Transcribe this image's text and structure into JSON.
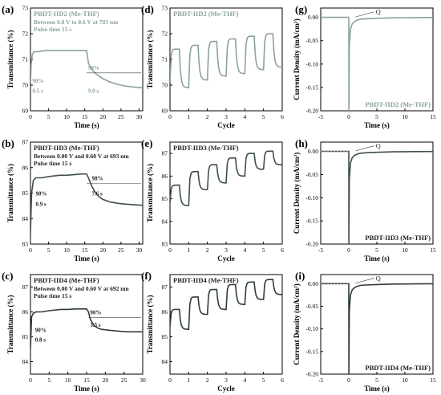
{
  "colors": {
    "c1": "#8aa39a",
    "c2": "#3e4f48",
    "c3": "#2f3d36",
    "axis": "#000000",
    "dash": "#999999"
  },
  "chart_data": [
    {
      "id": "a",
      "panel_label": "(a)",
      "type": "line",
      "color": "#8aa39a",
      "title": "PBDT-IID2 (Me-THF)",
      "info_lines": [
        "Between 0.0 V to 0.6 V at 703 nm",
        "Pulse time 15 s"
      ],
      "xlabel": "Time (s)",
      "ylabel": "Transmittance (%)",
      "xlim": [
        0,
        31
      ],
      "ylim": [
        69,
        73
      ],
      "xticks": [
        "0",
        "5",
        "10",
        "15",
        "20",
        "25",
        "30"
      ],
      "yticks": [
        "69",
        "70",
        "71",
        "72",
        "73"
      ],
      "annotations": [
        {
          "text": "90%",
          "x": 0.1,
          "y": 70.1
        },
        {
          "text": "0.5 s",
          "x": 0.1,
          "y": 69.7
        },
        {
          "text": "90%",
          "x": 15.5,
          "y": 70.6
        },
        {
          "text": "9.0 s",
          "x": 15.5,
          "y": 69.7
        }
      ],
      "series": [
        {
          "x": [
            0,
            0.2,
            0.5,
            1,
            2,
            4,
            6,
            8,
            10,
            12,
            14,
            15.5,
            16,
            17,
            18,
            19,
            20,
            22,
            24,
            26,
            28,
            30,
            31
          ],
          "y": [
            70.1,
            70.8,
            71.2,
            71.3,
            71.3,
            71.35,
            71.35,
            71.35,
            71.35,
            71.35,
            71.35,
            71.35,
            70.85,
            70.6,
            70.45,
            70.35,
            70.25,
            70.12,
            70.03,
            69.97,
            69.93,
            69.9,
            69.9
          ]
        }
      ]
    },
    {
      "id": "b",
      "panel_label": "(b)",
      "type": "line",
      "color": "#3e4f48",
      "title": "PBDT-IID3 (Me-THF)",
      "info_lines": [
        "Between 0.00 V and 0.60 V at 693 nm",
        "Pulse time 15 s"
      ],
      "xlabel": "Time (s)",
      "ylabel": "Transmittance (%)",
      "xlim": [
        0,
        31
      ],
      "ylim": [
        83,
        87
      ],
      "xticks": [
        "0",
        "5",
        "10",
        "15",
        "20",
        "25",
        "30"
      ],
      "yticks": [
        "83",
        "84",
        "85",
        "86",
        "87"
      ],
      "annotations": [
        {
          "text": "90%",
          "x": 1,
          "y": 84.9
        },
        {
          "text": "0.9 s",
          "x": 1,
          "y": 84.5
        },
        {
          "text": "98%",
          "x": 16.5,
          "y": 85.5
        },
        {
          "text": "7.6 s",
          "x": 16.5,
          "y": 84.9
        }
      ],
      "series": [
        {
          "x": [
            0,
            0.3,
            0.8,
            1.5,
            3,
            5,
            8,
            10,
            12,
            14,
            15.5,
            16,
            17,
            18,
            19,
            20,
            22,
            24,
            26,
            28,
            30,
            31
          ],
          "y": [
            83.4,
            85.0,
            85.5,
            85.6,
            85.6,
            85.65,
            85.7,
            85.7,
            85.72,
            85.75,
            85.75,
            85.6,
            85.25,
            85.0,
            84.85,
            84.75,
            84.65,
            84.6,
            84.57,
            84.55,
            84.53,
            84.52
          ]
        }
      ]
    },
    {
      "id": "c",
      "panel_label": "(c)",
      "type": "line",
      "color": "#2f3d36",
      "title": "PBDT-IID4 (Me-THF)",
      "info_lines": [
        "Between 0.00 V and 0.60 V at 692 nm",
        "Pulse time 15 s"
      ],
      "xlabel": "Time (s)",
      "ylabel": "Transmittance (%)",
      "xlim": [
        0,
        30
      ],
      "ylim": [
        83.5,
        87.5
      ],
      "xticks": [
        "0",
        "5",
        "10",
        "15",
        "20",
        "25",
        "30"
      ],
      "yticks": [
        "84",
        "85",
        "86",
        "87"
      ],
      "annotations": [
        {
          "text": "90%",
          "x": 0.8,
          "y": 85.2
        },
        {
          "text": "0.8 s",
          "x": 0.8,
          "y": 84.8
        },
        {
          "text": "90%",
          "x": 15.5,
          "y": 85.9
        },
        {
          "text": "3.5 s",
          "x": 15.5,
          "y": 85.4
        }
      ],
      "series": [
        {
          "x": [
            0,
            0.3,
            0.8,
            1.5,
            3,
            5,
            8,
            10,
            12,
            14,
            15,
            15.5,
            16,
            17,
            18,
            19,
            20,
            22,
            24,
            26,
            28,
            30
          ],
          "y": [
            84.5,
            85.8,
            85.95,
            86.0,
            86.0,
            86.05,
            86.1,
            86.1,
            86.12,
            86.12,
            86.12,
            86.0,
            85.7,
            85.45,
            85.35,
            85.3,
            85.28,
            85.25,
            85.22,
            85.2,
            85.2,
            85.2
          ]
        }
      ]
    },
    {
      "id": "d",
      "panel_label": "(d)",
      "type": "line",
      "color": "#8aa39a",
      "title": "PBDT-IID2 (Me-THF)",
      "xlabel": "Cycle",
      "ylabel": "Transmittance (%)",
      "xlim": [
        0,
        6
      ],
      "ylim": [
        69,
        73
      ],
      "xticks": [
        "0",
        "1",
        "2",
        "3",
        "4",
        "5",
        "6"
      ],
      "yticks": [
        "69",
        "70",
        "71",
        "72",
        "73"
      ],
      "series": [
        {
          "cycles": 6,
          "high": [
            71.4,
            71.55,
            71.7,
            71.8,
            71.9,
            72.0
          ],
          "low": [
            69.9,
            70.2,
            70.35,
            70.45,
            70.6,
            70.7
          ]
        }
      ]
    },
    {
      "id": "e",
      "panel_label": "(e)",
      "type": "line",
      "color": "#3e4f48",
      "title": "PBDT-IID3 (Me-THF)",
      "xlabel": "Cycle",
      "ylabel": "Transmittance (%)",
      "xlim": [
        0,
        6
      ],
      "ylim": [
        83,
        87.5
      ],
      "xticks": [
        "0",
        "1",
        "2",
        "3",
        "4",
        "5",
        "6"
      ],
      "yticks": [
        "83",
        "84",
        "85",
        "86",
        "87"
      ],
      "series": [
        {
          "cycles": 6,
          "high": [
            85.6,
            86.2,
            86.5,
            86.8,
            87.0,
            87.1
          ],
          "low": [
            84.7,
            85.4,
            85.7,
            86.0,
            86.3,
            86.5
          ]
        }
      ]
    },
    {
      "id": "f",
      "panel_label": "(f)",
      "type": "line",
      "color": "#2f3d36",
      "title": "PBDT-IID4 (Me-THF)",
      "xlabel": "Cycle",
      "ylabel": "Transmittance (%)",
      "xlim": [
        0,
        6
      ],
      "ylim": [
        83.5,
        87.5
      ],
      "xticks": [
        "0",
        "1",
        "2",
        "3",
        "4",
        "5",
        "6"
      ],
      "yticks": [
        "84",
        "85",
        "86",
        "87"
      ],
      "series": [
        {
          "cycles": 6,
          "high": [
            86.1,
            86.6,
            86.9,
            87.1,
            87.2,
            87.3
          ],
          "low": [
            85.3,
            85.9,
            86.1,
            86.3,
            86.5,
            86.7
          ]
        }
      ]
    },
    {
      "id": "g",
      "panel_label": "(g)",
      "type": "line",
      "color": "#8aa39a",
      "title": "PBDT-IID2 (Me-THF)",
      "q_label": "Q",
      "xlabel": "Time (s)",
      "ylabel": "Current Density (mA/cm²)",
      "xlim": [
        -5,
        15
      ],
      "ylim": [
        -0.2,
        0.02
      ],
      "xticks": [
        "-5",
        "0",
        "5",
        "10",
        "15"
      ],
      "yticks": [
        "0.00",
        "-0.05",
        "-0.10",
        "-0.15",
        "-0.20"
      ],
      "series": [
        {
          "x": [
            -5,
            0,
            0.02,
            0.1,
            0.3,
            0.6,
            1,
            1.5,
            2,
            3,
            5,
            8,
            12,
            15
          ],
          "y": [
            0,
            0,
            -0.2,
            -0.06,
            -0.025,
            -0.014,
            -0.009,
            -0.006,
            -0.004,
            -0.003,
            -0.002,
            -0.001,
            -0.0005,
            -0.0003
          ]
        }
      ]
    },
    {
      "id": "h",
      "panel_label": "(h)",
      "type": "line",
      "color": "#3e4f48",
      "title": "PBDT-IID3 (Me-THF)",
      "q_label": "Q",
      "xlabel": "Time (s)",
      "ylabel": "Current Density (mA/cm²)",
      "xlim": [
        -5,
        15
      ],
      "ylim": [
        -0.2,
        0.02
      ],
      "xticks": [
        "-5",
        "0",
        "5",
        "10",
        "15"
      ],
      "yticks": [
        "0.00",
        "-0.05",
        "-0.10",
        "-0.15",
        "-0.20"
      ],
      "series": [
        {
          "x": [
            -5,
            0,
            0.02,
            0.1,
            0.3,
            0.6,
            1,
            1.5,
            2,
            3,
            5,
            8,
            12,
            15
          ],
          "y": [
            0,
            0,
            -0.2,
            -0.06,
            -0.025,
            -0.014,
            -0.009,
            -0.006,
            -0.004,
            -0.003,
            -0.002,
            -0.001,
            -0.0005,
            -0.0003
          ]
        }
      ]
    },
    {
      "id": "i",
      "panel_label": "(i)",
      "type": "line",
      "color": "#2f3d36",
      "title": "PBDT-IID4 (Me-THF)",
      "q_label": "Q",
      "xlabel": "Time (s)",
      "ylabel": "Current Density (mA/cm²)",
      "xlim": [
        -5,
        15
      ],
      "ylim": [
        -0.2,
        0.02
      ],
      "xticks": [
        "-5",
        "0",
        "5",
        "10",
        "15"
      ],
      "yticks": [
        "0.00",
        "-0.05",
        "-0.10",
        "-0.15",
        "-0.20"
      ],
      "series": [
        {
          "x": [
            -5,
            0,
            0.02,
            0.1,
            0.3,
            0.6,
            1,
            1.5,
            2,
            3,
            5,
            8,
            12,
            15
          ],
          "y": [
            0,
            0,
            -0.2,
            -0.06,
            -0.025,
            -0.014,
            -0.009,
            -0.006,
            -0.004,
            -0.003,
            -0.002,
            -0.001,
            -0.0005,
            -0.0003
          ]
        }
      ]
    }
  ]
}
